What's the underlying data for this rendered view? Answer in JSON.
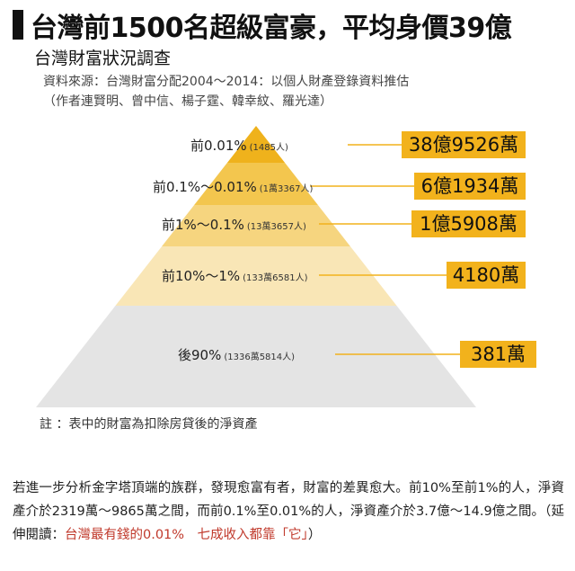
{
  "header": {
    "title": "台灣前1500名超級富豪，平均身價39億",
    "subtitle": "台灣財富狀況調查",
    "source": "資料來源：台灣財富分配2004～2014：以個人財產登錄資料推估",
    "authors": "（作者連賢明、曾中信、楊子霆、韓幸紋、羅光達）"
  },
  "pyramid": {
    "tiers": [
      {
        "name": "前0.01%",
        "count": "(1485人)",
        "value": "38億9526萬",
        "color": "#efb21c"
      },
      {
        "name": "前0.1%～0.01%",
        "count": "(1萬3367人)",
        "value": "6億1934萬",
        "color": "#f3c64e"
      },
      {
        "name": "前1%～0.1%",
        "count": "(13萬3657人)",
        "value": "1億5908萬",
        "color": "#f6d57f"
      },
      {
        "name": "前10%～1%",
        "count": "(133萬6581人)",
        "value": "4180萬",
        "color": "#f9e6b6"
      },
      {
        "name": "後90%",
        "count": "(1336萬5814人)",
        "value": "381萬",
        "color": "#e4e4e4"
      }
    ]
  },
  "note": "註 ：表中的財富為扣除房貸後的淨資產",
  "paragraph": {
    "text": "若進一步分析金字塔頂端的族群，發現愈富有者，財富的差異愈大。前10%至前1%的人，淨資產介於2319萬～9865萬之間，而前0.1%至0.01%的人，淨資產介於3.7億～14.9億之間。（延伸閱讀：",
    "link": "台灣最有錢的0.01%　七成收入都靠「它」",
    "end": "）"
  }
}
